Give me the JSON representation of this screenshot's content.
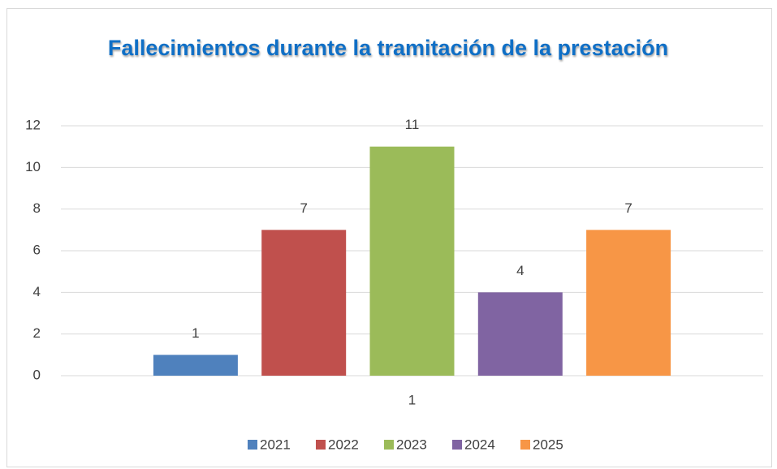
{
  "chart_data": {
    "type": "bar",
    "title": "Fallecimientos durante la tramitación de la prestación",
    "categories": [
      "1"
    ],
    "series": [
      {
        "name": "2021",
        "color": "#4f81bd",
        "values": [
          1
        ]
      },
      {
        "name": "2022",
        "color": "#c0504d",
        "values": [
          7
        ]
      },
      {
        "name": "2023",
        "color": "#9bbb59",
        "values": [
          11
        ]
      },
      {
        "name": "2024",
        "color": "#8064a2",
        "values": [
          4
        ]
      },
      {
        "name": "2025",
        "color": "#f79646",
        "values": [
          7
        ]
      }
    ],
    "ylim": [
      0,
      12
    ],
    "yticks": [
      0,
      2,
      4,
      6,
      8,
      10,
      12
    ],
    "grid": true,
    "legend": "bottom"
  }
}
